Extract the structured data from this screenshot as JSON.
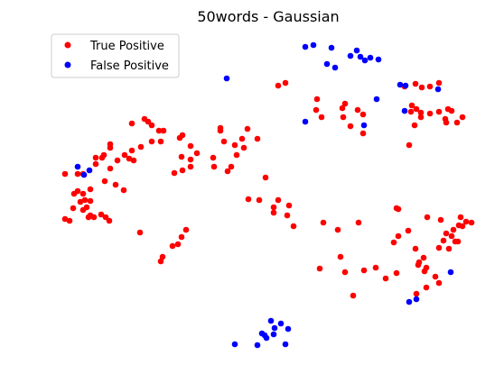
{
  "chart_data": {
    "type": "scatter",
    "title": "50words - Gaussian",
    "axes_visible": false,
    "grid": false,
    "legend_position": "top-left",
    "series": [
      {
        "name": "True Positive",
        "color": "#ff0000",
        "points": [
          [
            72,
            193
          ],
          [
            86,
            193
          ],
          [
            92,
            193
          ],
          [
            106,
            175
          ],
          [
            106,
            182
          ],
          [
            113,
            175
          ],
          [
            115,
            172
          ],
          [
            122,
            160
          ],
          [
            122,
            164
          ],
          [
            122,
            187
          ],
          [
            130,
            178
          ],
          [
            138,
            172
          ],
          [
            143,
            176
          ],
          [
            148,
            178
          ],
          [
            146,
            167
          ],
          [
            156,
            163
          ],
          [
            146,
            137
          ],
          [
            160,
            132
          ],
          [
            164,
            135
          ],
          [
            168,
            139
          ],
          [
            176,
            145
          ],
          [
            181,
            145
          ],
          [
            168,
            157
          ],
          [
            178,
            157
          ],
          [
            199,
            153
          ],
          [
            202,
            150
          ],
          [
            211,
            162
          ],
          [
            218,
            170
          ],
          [
            201,
            174
          ],
          [
            211,
            177
          ],
          [
            202,
            189
          ],
          [
            193,
            192
          ],
          [
            211,
            185
          ],
          [
            197,
            271
          ],
          [
            191,
            273
          ],
          [
            180,
            285
          ],
          [
            178,
            290
          ],
          [
            201,
            263
          ],
          [
            206,
            255
          ],
          [
            155,
            258
          ],
          [
            137,
            211
          ],
          [
            116,
            201
          ],
          [
            100,
            210
          ],
          [
            128,
            205
          ],
          [
            82,
            215
          ],
          [
            86,
            212
          ],
          [
            92,
            215
          ],
          [
            94,
            222
          ],
          [
            89,
            224
          ],
          [
            100,
            223
          ],
          [
            96,
            230
          ],
          [
            81,
            231
          ],
          [
            92,
            233
          ],
          [
            100,
            239
          ],
          [
            104,
            241
          ],
          [
            98,
            241
          ],
          [
            112,
            238
          ],
          [
            117,
            241
          ],
          [
            121,
            245
          ],
          [
            72,
            243
          ],
          [
            77,
            245
          ],
          [
            244,
            142
          ],
          [
            244,
            145
          ],
          [
            274,
            143
          ],
          [
            285,
            154
          ],
          [
            268,
            154
          ],
          [
            260,
            161
          ],
          [
            248,
            157
          ],
          [
            270,
            164
          ],
          [
            262,
            172
          ],
          [
            236,
            175
          ],
          [
            256,
            185
          ],
          [
            237,
            185
          ],
          [
            252,
            190
          ],
          [
            294,
            197
          ],
          [
            275,
            221
          ],
          [
            287,
            222
          ],
          [
            308,
            222
          ],
          [
            320,
            228
          ],
          [
            303,
            230
          ],
          [
            303,
            236
          ],
          [
            318,
            239
          ],
          [
            325,
            251
          ],
          [
            308,
            95
          ],
          [
            316,
            92
          ],
          [
            351,
            110
          ],
          [
            350,
            122
          ],
          [
            356,
            130
          ],
          [
            379,
            120
          ],
          [
            382,
            115
          ],
          [
            380,
            130
          ],
          [
            388,
            140
          ],
          [
            402,
            148
          ],
          [
            402,
            127
          ],
          [
            396,
            122
          ],
          [
            358,
            247
          ],
          [
            374,
            255
          ],
          [
            397,
            247
          ],
          [
            377,
            285
          ],
          [
            354,
            298
          ],
          [
            382,
            302
          ],
          [
            403,
            300
          ],
          [
            416,
            297
          ],
          [
            427,
            309
          ],
          [
            439,
            303
          ],
          [
            391,
            328
          ],
          [
            448,
            96
          ],
          [
            460,
            93
          ],
          [
            467,
            97
          ],
          [
            476,
            96
          ],
          [
            486,
            92
          ],
          [
            456,
            117
          ],
          [
            461,
            121
          ],
          [
            455,
            124
          ],
          [
            466,
            125
          ],
          [
            466,
            130
          ],
          [
            476,
            126
          ],
          [
            486,
            124
          ],
          [
            496,
            121
          ],
          [
            500,
            123
          ],
          [
            493,
            132
          ],
          [
            494,
            136
          ],
          [
            506,
            136
          ],
          [
            512,
            130
          ],
          [
            459,
            139
          ],
          [
            453,
            161
          ],
          [
            439,
            231
          ],
          [
            441,
            232
          ],
          [
            473,
            241
          ],
          [
            488,
            244
          ],
          [
            510,
            241
          ],
          [
            516,
            246
          ],
          [
            522,
            247
          ],
          [
            508,
            250
          ],
          [
            512,
            251
          ],
          [
            502,
            255
          ],
          [
            494,
            259
          ],
          [
            441,
            262
          ],
          [
            452,
            256
          ],
          [
            436,
            269
          ],
          [
            460,
            276
          ],
          [
            486,
            275
          ],
          [
            497,
            276
          ],
          [
            500,
            262
          ],
          [
            504,
            268
          ],
          [
            507,
            268
          ],
          [
            491,
            267
          ],
          [
            469,
            286
          ],
          [
            472,
            297
          ],
          [
            464,
            291
          ],
          [
            470,
            301
          ],
          [
            463,
            294
          ],
          [
            482,
            307
          ],
          [
            486,
            314
          ],
          [
            472,
            319
          ],
          [
            461,
            326
          ]
        ]
      },
      {
        "name": "False Positive",
        "color": "#0000ff",
        "points": [
          [
            86,
            185
          ],
          [
            93,
            194
          ],
          [
            99,
            189
          ],
          [
            251,
            87
          ],
          [
            338,
            52
          ],
          [
            347,
            50
          ],
          [
            367,
            53
          ],
          [
            388,
            62
          ],
          [
            395,
            56
          ],
          [
            399,
            63
          ],
          [
            404,
            67
          ],
          [
            410,
            64
          ],
          [
            419,
            66
          ],
          [
            362,
            71
          ],
          [
            371,
            75
          ],
          [
            443,
            94
          ],
          [
            449,
            95
          ],
          [
            485,
            99
          ],
          [
            417,
            110
          ],
          [
            448,
            123
          ],
          [
            338,
            135
          ],
          [
            403,
            139
          ],
          [
            499,
            302
          ],
          [
            453,
            335
          ],
          [
            461,
            332
          ],
          [
            300,
            356
          ],
          [
            311,
            359
          ],
          [
            304,
            364
          ],
          [
            319,
            365
          ],
          [
            290,
            370
          ],
          [
            295,
            375
          ],
          [
            293,
            372
          ],
          [
            303,
            371
          ],
          [
            260,
            382
          ],
          [
            285,
            383
          ],
          [
            316,
            382
          ]
        ]
      }
    ]
  }
}
